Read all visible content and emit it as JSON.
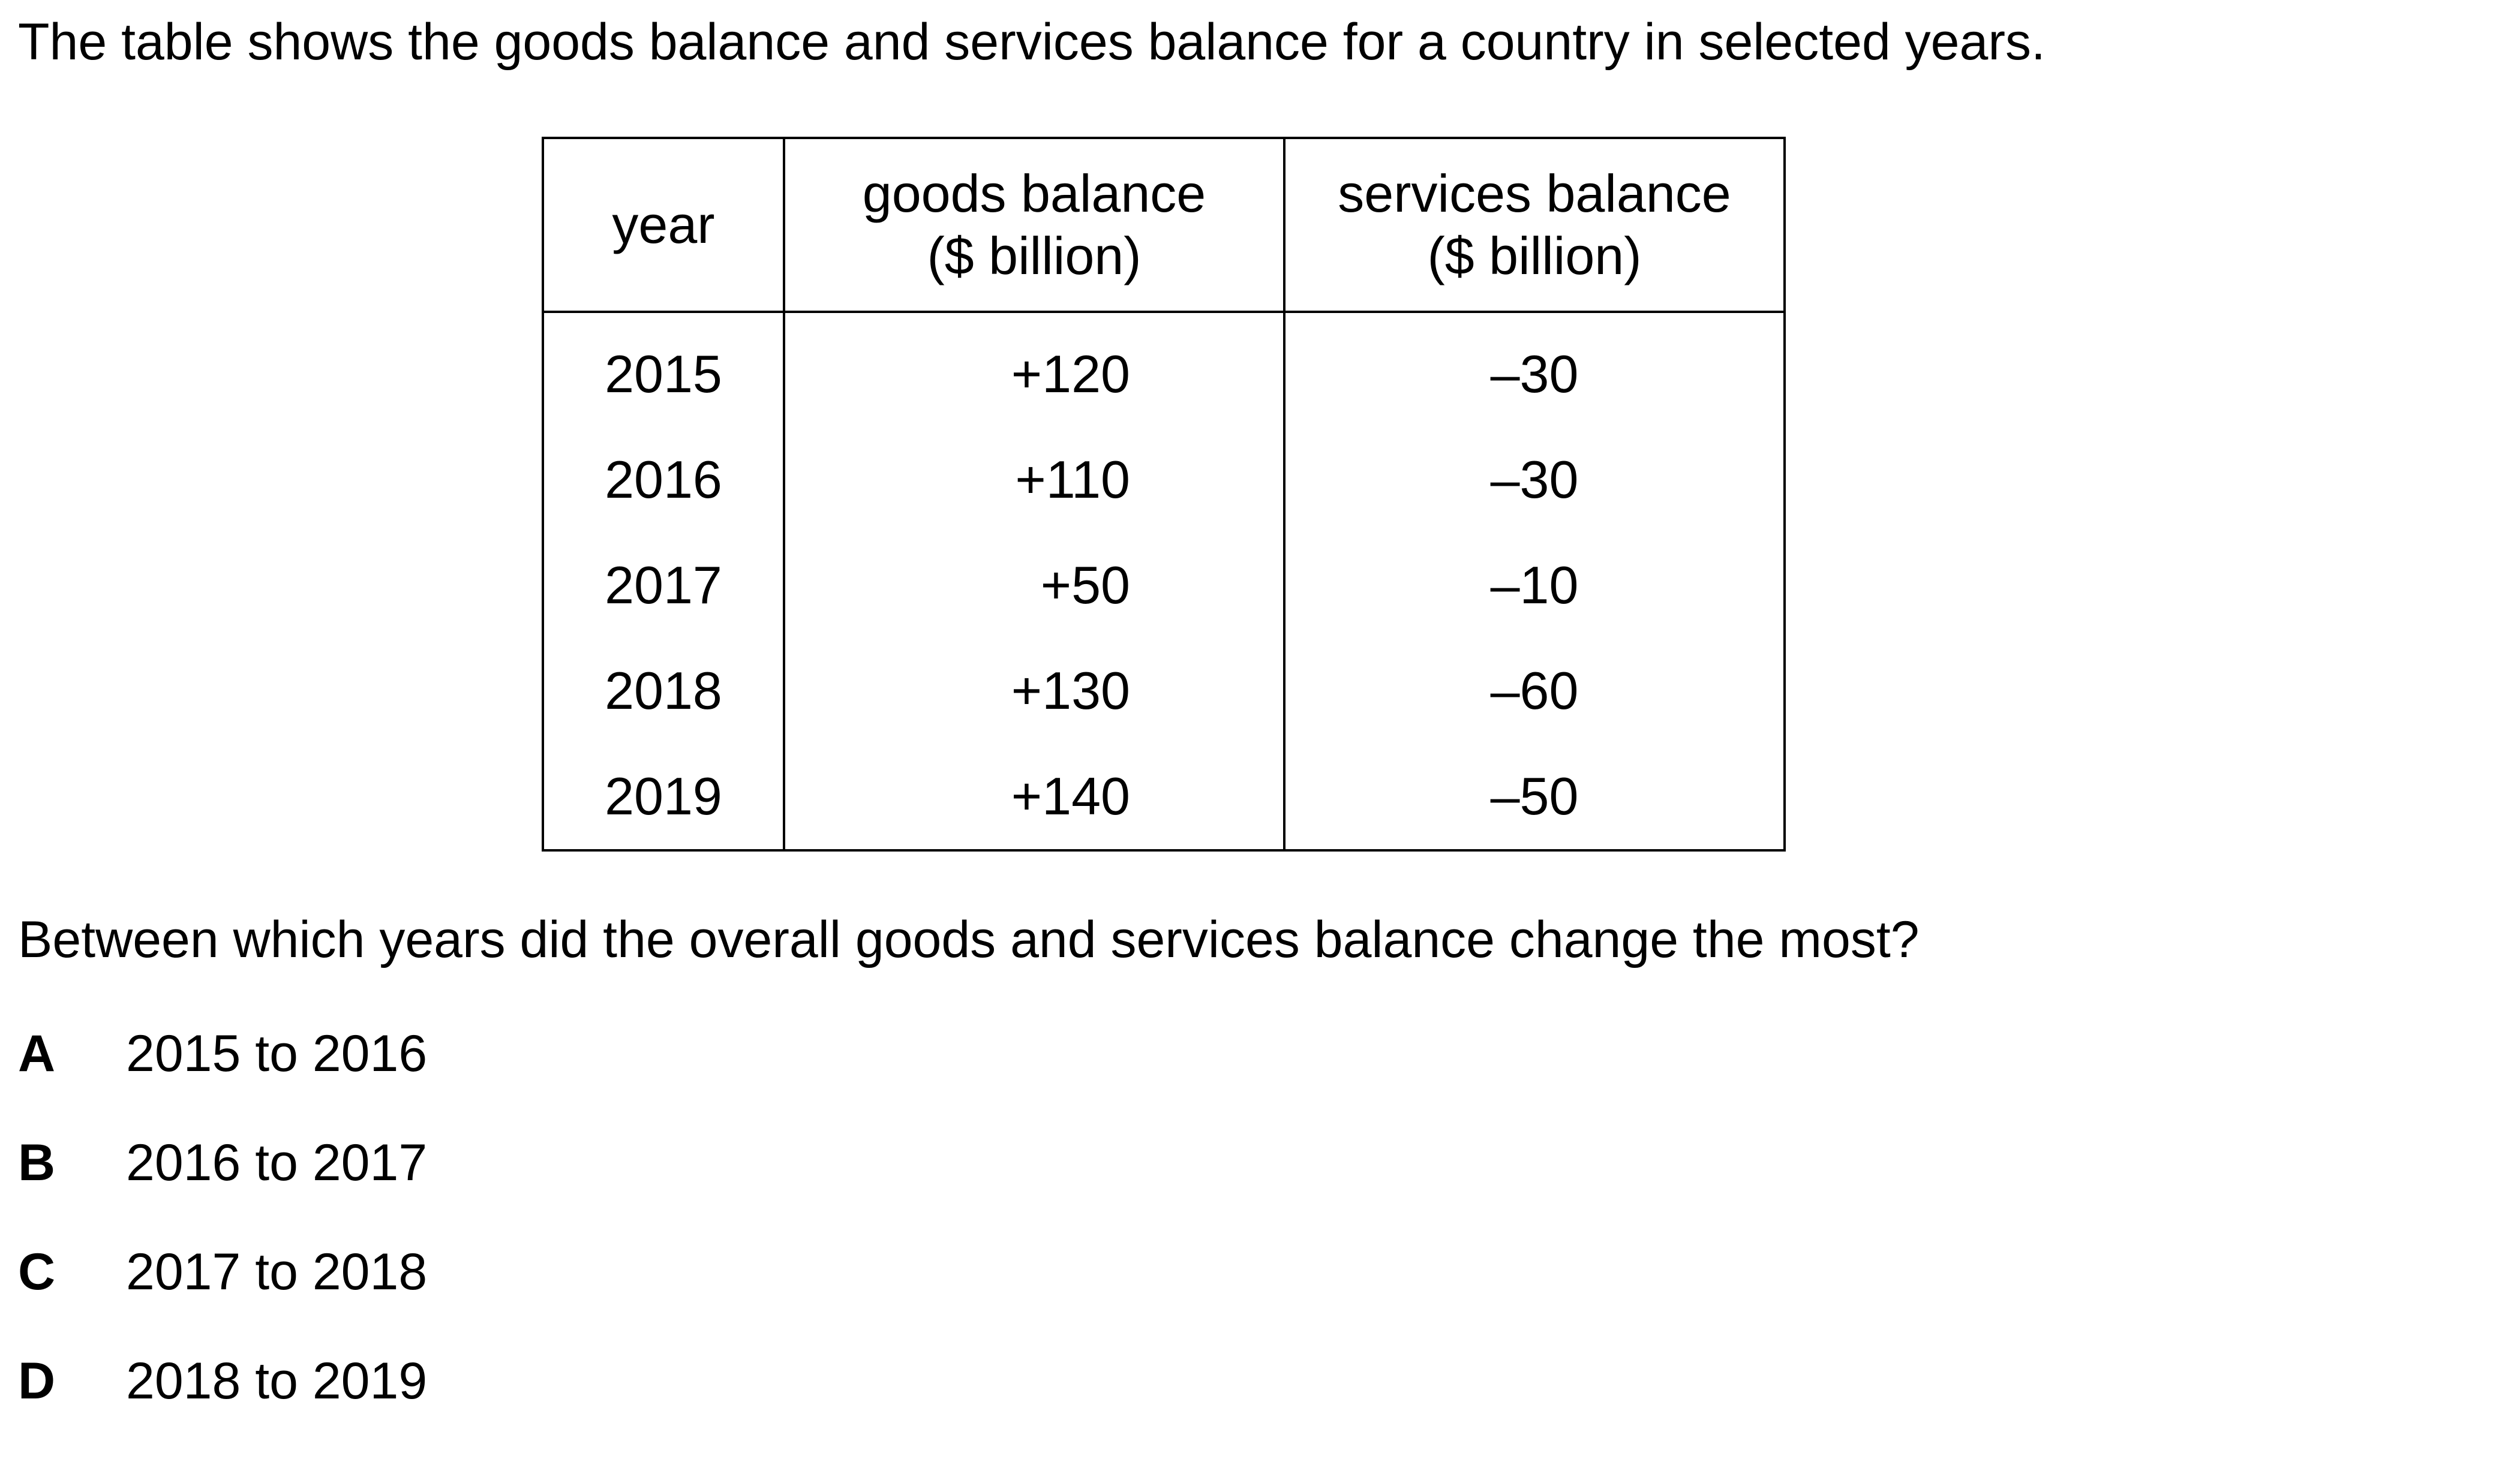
{
  "intro": "The table shows the goods balance and services balance for a country in selected years.",
  "table": {
    "headers": {
      "year": "year",
      "goods_line1": "goods balance",
      "goods_line2": "($ billion)",
      "services_line1": "services balance",
      "services_line2": "($ billion)"
    },
    "rows": [
      {
        "year": "2015",
        "goods": "+120",
        "services": "–30"
      },
      {
        "year": "2016",
        "goods": "+110",
        "services": "–30"
      },
      {
        "year": "2017",
        "goods": "+50",
        "services": "–10"
      },
      {
        "year": "2018",
        "goods": "+130",
        "services": "–60"
      },
      {
        "year": "2019",
        "goods": "+140",
        "services": "–50"
      }
    ]
  },
  "question": "Between which years did the overall goods and services balance change the most?",
  "options": [
    {
      "letter": "A",
      "text": "2015 to 2016"
    },
    {
      "letter": "B",
      "text": "2016 to 2017"
    },
    {
      "letter": "C",
      "text": "2017 to 2018"
    },
    {
      "letter": "D",
      "text": "2018 to 2019"
    }
  ]
}
